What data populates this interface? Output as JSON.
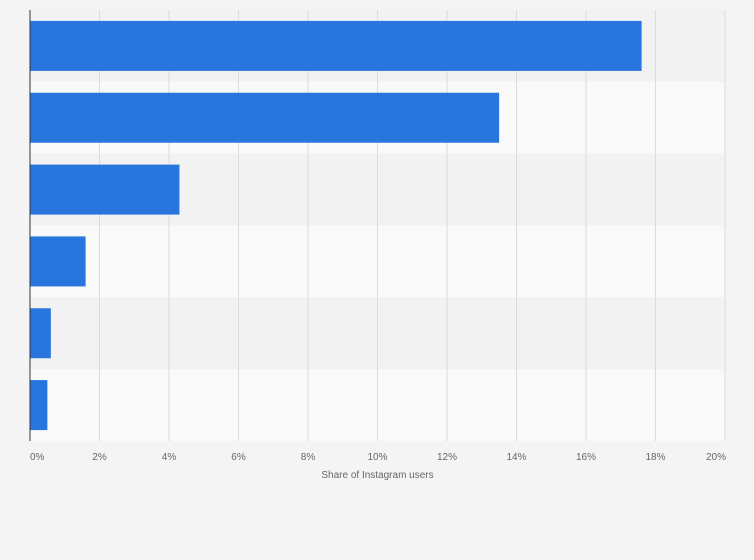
{
  "chart_data": {
    "type": "bar",
    "orientation": "horizontal",
    "categories": [
      "",
      "",
      "",
      "",
      "",
      ""
    ],
    "values": [
      17.6,
      13.5,
      4.3,
      1.6,
      0.6,
      0.5
    ],
    "xlabel": "Share of Instagram users",
    "ylabel": "",
    "xlim": [
      0,
      20
    ],
    "xticks": [
      "0%",
      "2%",
      "4%",
      "6%",
      "8%",
      "10%",
      "12%",
      "14%",
      "16%",
      "18%",
      "20%"
    ],
    "grid": "vertical",
    "legend": "none",
    "colors": {
      "bar": "#2876dd",
      "band_dark": "#f2f2f2",
      "band_light": "#f9f9f9",
      "grid": "#dcdcdc",
      "axis": "#333333",
      "text": "#666666"
    }
  }
}
